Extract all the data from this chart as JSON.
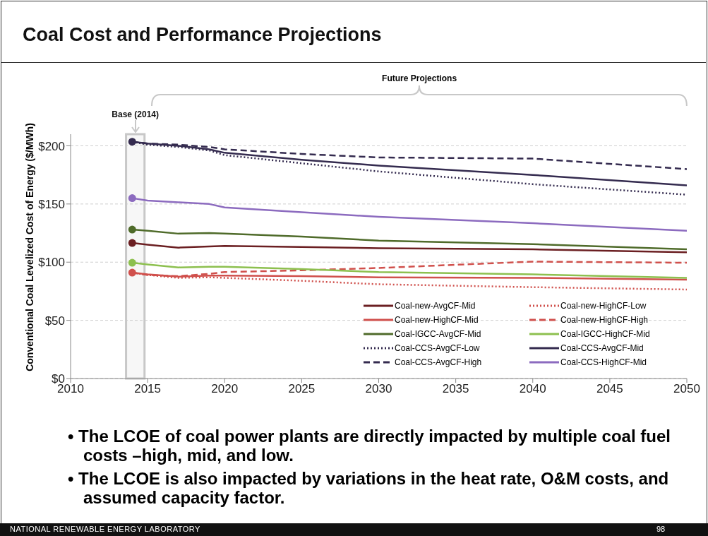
{
  "chart_data": {
    "type": "line",
    "title": "Coal Cost and Performance Projections",
    "ylabel": "Conventional Coal Levelized Cost of Energy ($/MWh)",
    "x": [
      2014,
      2015,
      2017,
      2019,
      2020,
      2025,
      2030,
      2040,
      2050
    ],
    "xlim": [
      2010,
      2050
    ],
    "xticks": [
      2010,
      2015,
      2020,
      2025,
      2030,
      2035,
      2040,
      2045,
      2050
    ],
    "ylim": [
      0,
      210
    ],
    "yticks": [
      {
        "value": 0,
        "label": "$0"
      },
      {
        "value": 50,
        "label": "$50"
      },
      {
        "value": 100,
        "label": "$100"
      },
      {
        "value": 150,
        "label": "$150"
      },
      {
        "value": 200,
        "label": "$200"
      }
    ],
    "grid": "y",
    "legend": "bottom right",
    "series": [
      {
        "name": "Coal-new-AvgCF-Mid",
        "color": "#6b1f22",
        "line_style": "solid",
        "values": [
          116.5,
          115,
          112.5,
          113.5,
          114,
          113,
          112,
          111,
          108.5
        ]
      },
      {
        "name": "Coal-new-HighCF-Low",
        "color": "#d0504c",
        "line_style": "dotted",
        "values": [
          91,
          89,
          86.5,
          87,
          86.5,
          84,
          81,
          78.5,
          76.5
        ]
      },
      {
        "name": "Coal-new-HighCF-Mid",
        "color": "#d0504c",
        "line_style": "solid",
        "values": [
          91,
          89.5,
          87.5,
          88.5,
          88.5,
          88,
          87,
          86.5,
          85
        ]
      },
      {
        "name": "Coal-new-HighCF-High",
        "color": "#d0504c",
        "line_style": "dashed",
        "values": [
          91,
          89,
          88,
          90,
          91.5,
          93,
          95,
          100.5,
          99.5
        ]
      },
      {
        "name": "Coal-IGCC-AvgCF-Mid",
        "color": "#4f6b2a",
        "line_style": "solid",
        "values": [
          128,
          127,
          124.5,
          125,
          124.5,
          122,
          118.5,
          115.5,
          111
        ]
      },
      {
        "name": "Coal-IGCC-HighCF-Mid",
        "color": "#8dc04f",
        "line_style": "solid",
        "values": [
          99.5,
          98,
          95.5,
          96,
          96,
          94,
          91.5,
          89.5,
          86.5
        ]
      },
      {
        "name": "Coal-CCS-AvgCF-Low",
        "color": "#342b4f",
        "line_style": "dotted",
        "values": [
          203.5,
          201,
          199,
          196,
          192,
          185,
          178,
          167,
          158
        ]
      },
      {
        "name": "Coal-CCS-AvgCF-Mid",
        "color": "#342b4f",
        "line_style": "solid",
        "values": [
          203.5,
          202,
          200,
          197,
          194,
          188,
          183,
          175,
          166
        ]
      },
      {
        "name": "Coal-CCS-AvgCF-High",
        "color": "#342b4f",
        "line_style": "dashed",
        "values": [
          203.5,
          202,
          201,
          199,
          197,
          193,
          190,
          189,
          180
        ]
      },
      {
        "name": "Coal-CCS-HighCF-Mid",
        "color": "#8c6bbf",
        "line_style": "solid",
        "values": [
          155,
          153,
          151.5,
          150,
          147,
          143,
          139,
          133.5,
          127
        ]
      },
      {
        "type": "scatter",
        "marker": "circle",
        "color": "#6b1f22",
        "values": [
          116.5,
          null,
          null,
          null,
          null,
          null,
          null,
          null,
          null
        ]
      },
      {
        "type": "scatter",
        "marker": "circle",
        "color": "#d0504c",
        "values": [
          91,
          null,
          null,
          null,
          null,
          null,
          null,
          null,
          null
        ]
      },
      {
        "type": "scatter",
        "marker": "circle",
        "color": "#4f6b2a",
        "values": [
          128,
          null,
          null,
          null,
          null,
          null,
          null,
          null,
          null
        ]
      },
      {
        "type": "scatter",
        "marker": "circle",
        "color": "#8dc04f",
        "values": [
          99.5,
          null,
          null,
          null,
          null,
          null,
          null,
          null,
          null
        ]
      },
      {
        "type": "scatter",
        "marker": "circle",
        "color": "#342b4f",
        "values": [
          203.5,
          null,
          null,
          null,
          null,
          null,
          null,
          null,
          null
        ]
      },
      {
        "type": "scatter",
        "marker": "circle",
        "color": "#8c6bbf",
        "values": [
          155,
          null,
          null,
          null,
          null,
          null,
          null,
          null,
          null
        ]
      }
    ],
    "bands": [
      {
        "axis": "x",
        "from": 2013.6,
        "to": 2014.8,
        "label": "Base (2014)",
        "color": "#c8c8c8"
      }
    ],
    "annotations": [
      "Future Projections",
      "• The LCOE of coal power plants are directly impacted by multiple coal fuel costs –high, mid, and low.",
      "• The LCOE is also impacted by variations in the heat rate, O&M costs, and assumed capacity factor.",
      "NATIONAL RENEWABLE ENERGY LABORATORY",
      "98"
    ]
  }
}
